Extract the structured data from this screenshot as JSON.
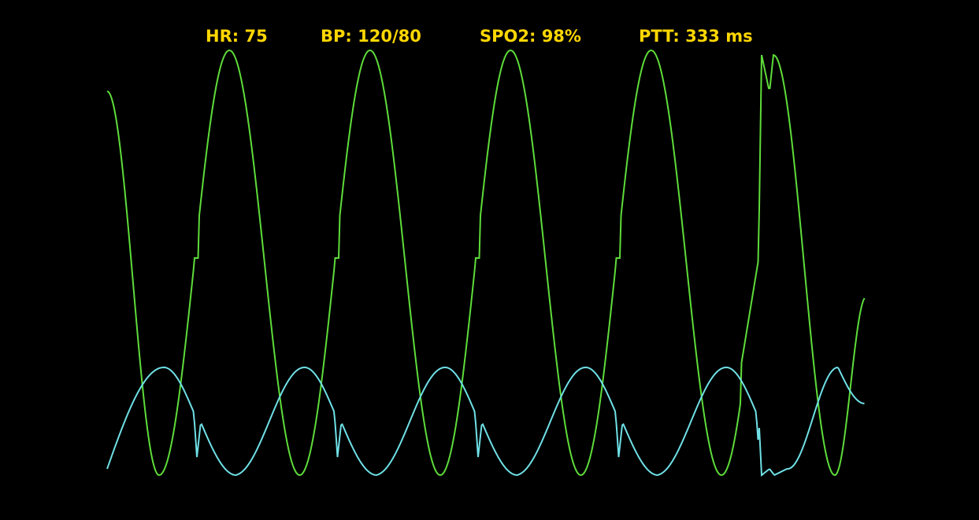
{
  "vitals": {
    "hr": "HR: 75",
    "bp": "BP: 120/80",
    "spo2": "SPO2: 98%",
    "ptt": "PTT: 333 ms"
  },
  "colors": {
    "background": "#000000",
    "label": "#FFD700",
    "ppg_wave": "#5EDC3A",
    "pressure_wave": "#6FE0E6"
  },
  "chart_data": {
    "type": "line",
    "title": "",
    "xlabel": "",
    "ylabel": "",
    "grid": false,
    "legend": "none",
    "series": [
      {
        "values_desc": "",
        "x": [
          0,
          0.3,
          0.6,
          0.9,
          1.2,
          1.5,
          1.8,
          2.1,
          2.4,
          2.7,
          3.0,
          3.3,
          3.6,
          3.9,
          4.2,
          4.5,
          4.8,
          5.4
        ],
        "values": [
          0.92,
          0.2,
          0.0,
          0.5,
          0.55,
          1.0,
          0.5,
          0.0,
          0.55,
          1.0,
          0.5,
          0.0,
          0.55,
          1.0,
          0.0,
          1.0,
          0.0,
          0.42
        ]
      },
      {
        "x": [
          0,
          0.4,
          0.8,
          1.2,
          1.35,
          1.6,
          2.0,
          2.4,
          2.8,
          3.0,
          3.2,
          3.6,
          4.0,
          4.4,
          4.8,
          5.2,
          5.4
        ],
        "values": [
          0.0,
          0.5,
          0.3,
          0.05,
          0.25,
          0.0,
          0.5,
          0.0,
          0.5,
          0.05,
          0.25,
          0.0,
          0.5,
          0.0,
          0.5,
          0.0,
          0.22
        ]
      }
    ]
  }
}
